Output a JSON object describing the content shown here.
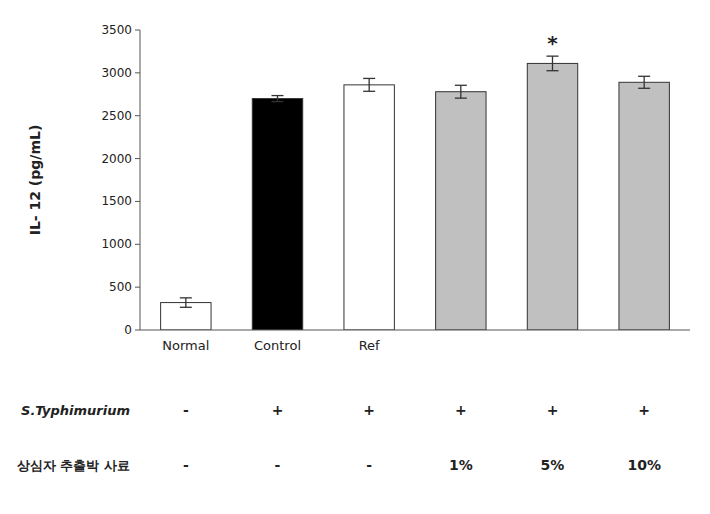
{
  "chart_data": {
    "type": "bar",
    "ylabel": "IL- 12 (pg/mL)",
    "categories": [
      "Normal",
      "Control",
      "Ref",
      null,
      null,
      null
    ],
    "values": [
      320,
      2700,
      2860,
      2780,
      3110,
      2890
    ],
    "errors": [
      55,
      35,
      75,
      75,
      85,
      70
    ],
    "colors": [
      "#ffffff",
      "#000000",
      "#ffffff",
      "#c0c0c0",
      "#c0c0c0",
      "#c0c0c0"
    ],
    "ylim": [
      0,
      3500
    ],
    "yticks": [
      0,
      500,
      1000,
      1500,
      2000,
      2500,
      3000,
      3500
    ],
    "grid": false,
    "annotations": [
      {
        "category_index": 4,
        "text": "*"
      }
    ],
    "table_rows": [
      {
        "label": "S.Typhimurium",
        "values": [
          "-",
          "+",
          "+",
          "+",
          "+",
          "+"
        ]
      },
      {
        "label": "상심자 추출박 사료",
        "values": [
          "-",
          "-",
          "-",
          "1%",
          "5%",
          "10%"
        ]
      }
    ]
  }
}
